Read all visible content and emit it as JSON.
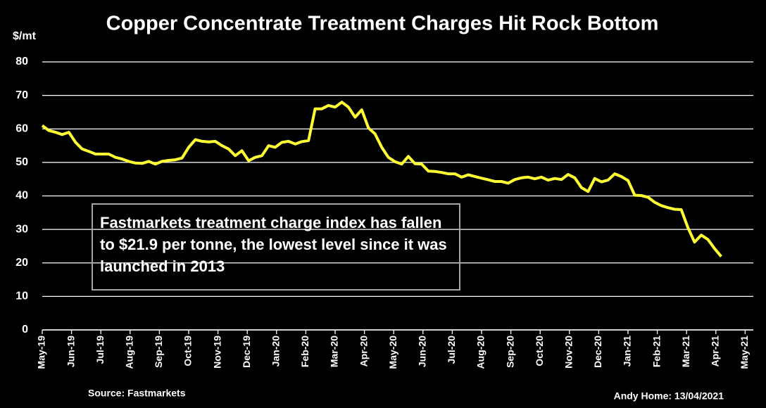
{
  "chart_data": {
    "type": "line",
    "title": "Copper Concentrate Treatment Charges Hit Rock Bottom",
    "y_label": "$/mt",
    "annotation": "Fastmarkets treatment charge index has fallen to $21.9 per tonne, the lowest level since it was launched in 2013",
    "source": "Source: Fastmarkets",
    "credit": "Andy Home: 13/04/2021",
    "color": "#ffff33",
    "grid": true,
    "ylim": [
      0,
      80
    ],
    "yticks": [
      0,
      10,
      20,
      30,
      40,
      50,
      60,
      70,
      80
    ],
    "xticks": [
      "May-19",
      "Jun-19",
      "Jul-19",
      "Aug-19",
      "Sep-19",
      "Oct-19",
      "Nov-19",
      "Dec-19",
      "Jan-20",
      "Feb-20",
      "Mar-20",
      "Apr-20",
      "May-20",
      "Jun-20",
      "Jul-20",
      "Aug-20",
      "Sep-20",
      "Oct-20",
      "Nov-20",
      "Dec-20",
      "Jan-21",
      "Feb-21",
      "Mar-21",
      "Apr-21",
      "May-21"
    ],
    "values": [
      61,
      59.5,
      59,
      58.3,
      59,
      56,
      54,
      53.3,
      52.5,
      52.5,
      52.5,
      51.5,
      51,
      50.3,
      49.8,
      49.7,
      50.3,
      49.5,
      50.3,
      50.6,
      50.8,
      51.3,
      54.5,
      56.8,
      56.3,
      56.1,
      56.3,
      55,
      54,
      52,
      53.5,
      50.5,
      51.5,
      52,
      55,
      54.5,
      56,
      56.3,
      55.5,
      56.2,
      56.5,
      66,
      66,
      67,
      66.5,
      68,
      66.5,
      63.5,
      65.7,
      60.3,
      58.5,
      54.5,
      51.5,
      50.2,
      49.5,
      51.8,
      49.6,
      49.5,
      47.4,
      47.3,
      47,
      46.6,
      46.6,
      45.6,
      46.3,
      45.8,
      45.3,
      44.8,
      44.3,
      44.3,
      43.8,
      44.9,
      45.4,
      45.6,
      45.1,
      45.6,
      44.7,
      45.2,
      44.9,
      46.4,
      45.4,
      42.5,
      41.3,
      45.2,
      44.2,
      44.7,
      46.6,
      45.8,
      44.6,
      40.2,
      40.1,
      39.6,
      38.1,
      37.1,
      36.5,
      36,
      35.9,
      30.5,
      26.2,
      28.3,
      27,
      24.3,
      21.9
    ]
  }
}
